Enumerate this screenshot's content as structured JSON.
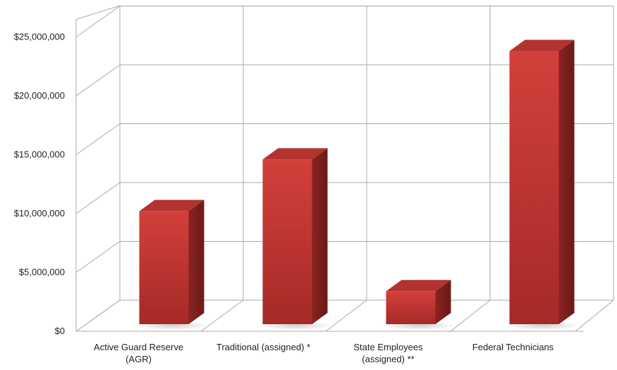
{
  "chart_data": {
    "type": "bar",
    "categories": [
      [
        "Active Guard Reserve",
        "(AGR)"
      ],
      [
        "Traditional (assigned) *"
      ],
      [
        "State Employees",
        "(assigned) **"
      ],
      [
        "Federal Technicians"
      ]
    ],
    "values": [
      9600000,
      14000000,
      2800000,
      23200000
    ],
    "y_ticks": [
      "$0",
      "$5,000,000",
      "$10,000,000",
      "$15,000,000",
      "$20,000,000",
      "$25,000,000"
    ],
    "ylim": [
      0,
      25000000
    ],
    "title": "",
    "xlabel": "",
    "ylabel": "",
    "grid": true,
    "legend": "none",
    "style": "3d-column",
    "colors": {
      "bar_front": "#cc3a36",
      "bar_front_dark": "#a82a27",
      "bar_side": "#7a1f1d",
      "bar_top": "#b33330",
      "grid": "#a8a8a8"
    }
  }
}
